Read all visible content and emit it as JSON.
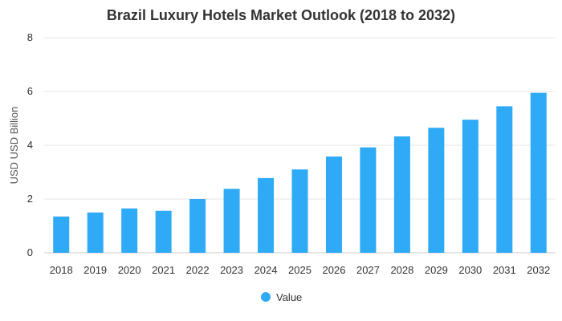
{
  "chart_data": {
    "type": "bar",
    "title": "Brazil Luxury Hotels Market Outlook (2018 to 2032)",
    "xlabel": "",
    "ylabel": "USD USD Billion",
    "categories": [
      "2018",
      "2019",
      "2020",
      "2021",
      "2022",
      "2023",
      "2024",
      "2025",
      "2026",
      "2027",
      "2028",
      "2029",
      "2030",
      "2031",
      "2032"
    ],
    "series": [
      {
        "name": "Value",
        "color": "#2eaaf6",
        "values": [
          1.35,
          1.5,
          1.65,
          1.56,
          2.0,
          2.38,
          2.78,
          3.1,
          3.58,
          3.92,
          4.33,
          4.65,
          4.95,
          5.45,
          5.95
        ]
      }
    ],
    "ylim": [
      0,
      8
    ],
    "yticks": [
      0,
      2,
      4,
      6,
      8
    ],
    "grid": true,
    "legend": "bottom-center"
  }
}
